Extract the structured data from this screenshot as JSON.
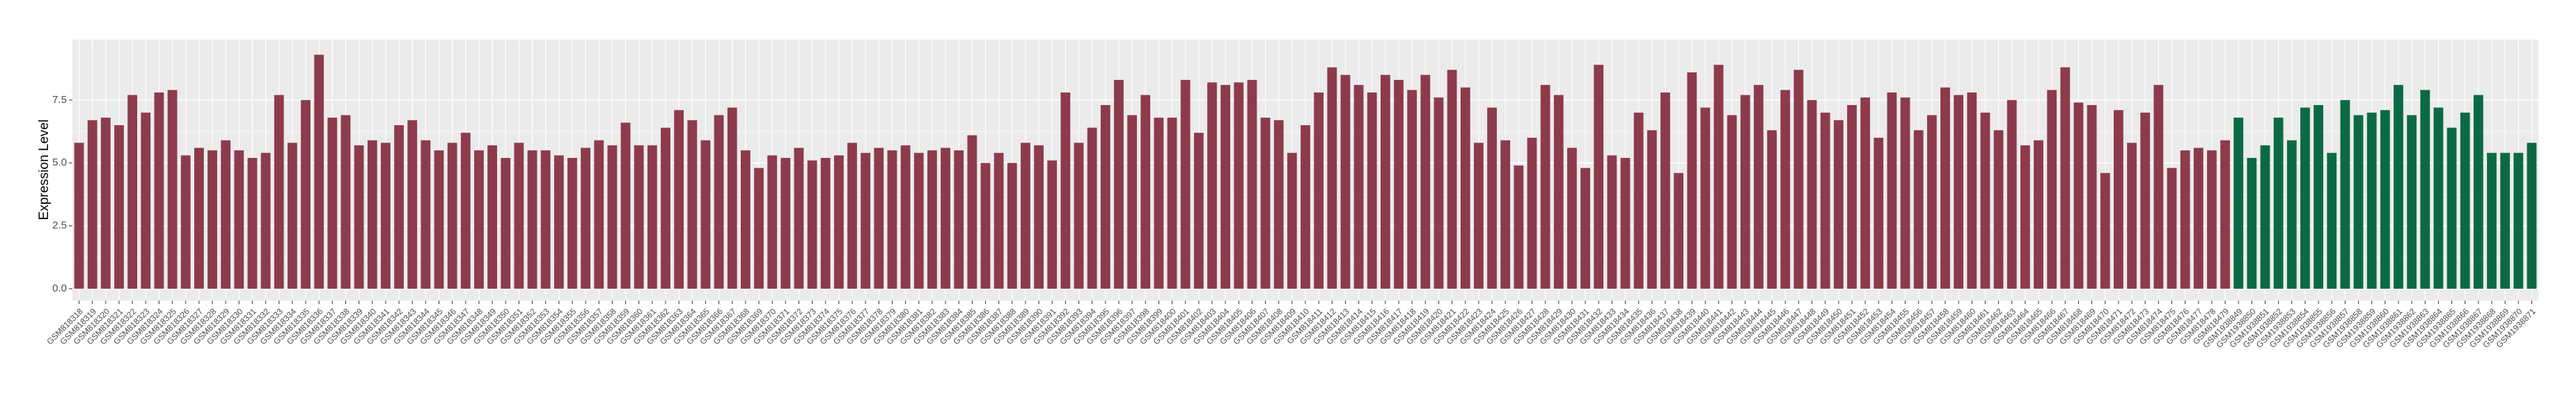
{
  "chart_data": {
    "type": "bar",
    "y_label": "Expression Level",
    "categories": [
      "GSM818318",
      "GSM818319",
      "GSM818320",
      "GSM818321",
      "GSM818322",
      "GSM818323",
      "GSM818324",
      "GSM818325",
      "GSM818326",
      "GSM818327",
      "GSM818328",
      "GSM818329",
      "GSM818330",
      "GSM818331",
      "GSM818332",
      "GSM818333",
      "GSM818334",
      "GSM818335",
      "GSM818336",
      "GSM818337",
      "GSM818338",
      "GSM818339",
      "GSM818340",
      "GSM818341",
      "GSM818342",
      "GSM818343",
      "GSM818344",
      "GSM818345",
      "GSM818346",
      "GSM818347",
      "GSM818348",
      "GSM818349",
      "GSM818350",
      "GSM818351",
      "GSM818352",
      "GSM818353",
      "GSM818354",
      "GSM818355",
      "GSM818356",
      "GSM818357",
      "GSM818358",
      "GSM818359",
      "GSM818360",
      "GSM818361",
      "GSM818362",
      "GSM818363",
      "GSM818364",
      "GSM818365",
      "GSM818366",
      "GSM818367",
      "GSM818368",
      "GSM818369",
      "GSM818370",
      "GSM818371",
      "GSM818372",
      "GSM818373",
      "GSM818374",
      "GSM818375",
      "GSM818376",
      "GSM818377",
      "GSM818378",
      "GSM818379",
      "GSM818380",
      "GSM818381",
      "GSM818382",
      "GSM818383",
      "GSM818384",
      "GSM818385",
      "GSM818386",
      "GSM818387",
      "GSM818388",
      "GSM818389",
      "GSM818390",
      "GSM818391",
      "GSM818392",
      "GSM818393",
      "GSM818394",
      "GSM818395",
      "GSM818396",
      "GSM818397",
      "GSM818398",
      "GSM818399",
      "GSM818400",
      "GSM818401",
      "GSM818402",
      "GSM818403",
      "GSM818404",
      "GSM818405",
      "GSM818406",
      "GSM818407",
      "GSM818408",
      "GSM818409",
      "GSM818410",
      "GSM818411",
      "GSM818412",
      "GSM818413",
      "GSM818414",
      "GSM818415",
      "GSM818416",
      "GSM818417",
      "GSM818418",
      "GSM818419",
      "GSM818420",
      "GSM818421",
      "GSM818422",
      "GSM818423",
      "GSM818424",
      "GSM818425",
      "GSM818426",
      "GSM818427",
      "GSM818428",
      "GSM818429",
      "GSM818430",
      "GSM818431",
      "GSM818432",
      "GSM818433",
      "GSM818434",
      "GSM818435",
      "GSM818436",
      "GSM818437",
      "GSM818438",
      "GSM818439",
      "GSM818440",
      "GSM818441",
      "GSM818442",
      "GSM818443",
      "GSM818444",
      "GSM818445",
      "GSM818446",
      "GSM818447",
      "GSM818448",
      "GSM818449",
      "GSM818450",
      "GSM818451",
      "GSM818452",
      "GSM818453",
      "GSM818454",
      "GSM818455",
      "GSM818456",
      "GSM818457",
      "GSM818458",
      "GSM818459",
      "GSM818460",
      "GSM818461",
      "GSM818462",
      "GSM818463",
      "GSM818464",
      "GSM818465",
      "GSM818466",
      "GSM818467",
      "GSM818468",
      "GSM818469",
      "GSM818470",
      "GSM818471",
      "GSM818472",
      "GSM818473",
      "GSM818474",
      "GSM818475",
      "GSM818476",
      "GSM818477",
      "GSM818478",
      "GSM818479",
      "GSM1938849",
      "GSM1938850",
      "GSM1938851",
      "GSM1938852",
      "GSM1938853",
      "GSM1938854",
      "GSM1938855",
      "GSM1938856",
      "GSM1938857",
      "GSM1938858",
      "GSM1938859",
      "GSM1938860",
      "GSM1938861",
      "GSM1938862",
      "GSM1938863",
      "GSM1938864",
      "GSM1938865",
      "GSM1938866",
      "GSM1938867",
      "GSM1938868",
      "GSM1938869",
      "GSM1938870",
      "GSM1938871"
    ],
    "series": [
      {
        "color": "#8d3b4c",
        "values": [
          5.8,
          6.7,
          6.8,
          6.5,
          7.7,
          7.0,
          7.8,
          7.9,
          5.3,
          5.6,
          5.5,
          5.9,
          5.5,
          5.2,
          5.4,
          7.7,
          5.8,
          7.5,
          9.3,
          6.8,
          6.9,
          5.7,
          5.9,
          5.8,
          6.5,
          6.7,
          5.9,
          5.5,
          5.8,
          6.2,
          5.5,
          5.7,
          5.2,
          5.8,
          5.5,
          5.5,
          5.3,
          5.2,
          5.6,
          5.9,
          5.7,
          6.6,
          5.7,
          5.7,
          6.4,
          7.1,
          6.7,
          5.9,
          6.9,
          7.2,
          5.5,
          4.8,
          5.3,
          5.2,
          5.6,
          5.1,
          5.2,
          5.3,
          5.8,
          5.4,
          5.6,
          5.5,
          5.7,
          5.4,
          5.5,
          5.6,
          5.5,
          6.1,
          5.0,
          5.4,
          5.0,
          5.8,
          5.7,
          5.1,
          7.8,
          5.8,
          6.4,
          7.3,
          8.3,
          6.9,
          7.7,
          6.8,
          6.8,
          8.3,
          6.2,
          8.2,
          8.1,
          8.2,
          8.3,
          6.8,
          6.7,
          5.4,
          6.5,
          7.8,
          8.8,
          8.5,
          8.1,
          7.8,
          8.5,
          8.3,
          7.9,
          8.5,
          7.6,
          8.7,
          8.0,
          5.8,
          7.2,
          5.9,
          4.9,
          6.0,
          8.1,
          7.7,
          5.6,
          4.8,
          8.9,
          5.3,
          5.2,
          7.0,
          6.3,
          7.8,
          4.6,
          8.6,
          7.2,
          8.9,
          6.9,
          7.7,
          8.1,
          6.3,
          7.9,
          8.7,
          7.5,
          7.0,
          6.7,
          7.3,
          7.6,
          6.0,
          7.8,
          7.6,
          6.3,
          6.9,
          8.0,
          7.7,
          7.8,
          7.0,
          6.3,
          7.5,
          5.7,
          5.9,
          7.9,
          8.8,
          7.4,
          7.3,
          4.6,
          7.1,
          5.8,
          7.0,
          8.1,
          4.8,
          5.5,
          5.6,
          5.5,
          5.9,
          null,
          null,
          null,
          null,
          null,
          null,
          null,
          null,
          null,
          null,
          null,
          null,
          null,
          null,
          null,
          null,
          null,
          null,
          null,
          null,
          null,
          null,
          null
        ]
      },
      {
        "color": "#0b6a45",
        "values": [
          null,
          null,
          null,
          null,
          null,
          null,
          null,
          null,
          null,
          null,
          null,
          null,
          null,
          null,
          null,
          null,
          null,
          null,
          null,
          null,
          null,
          null,
          null,
          null,
          null,
          null,
          null,
          null,
          null,
          null,
          null,
          null,
          null,
          null,
          null,
          null,
          null,
          null,
          null,
          null,
          null,
          null,
          null,
          null,
          null,
          null,
          null,
          null,
          null,
          null,
          null,
          null,
          null,
          null,
          null,
          null,
          null,
          null,
          null,
          null,
          null,
          null,
          null,
          null,
          null,
          null,
          null,
          null,
          null,
          null,
          null,
          null,
          null,
          null,
          null,
          null,
          null,
          null,
          null,
          null,
          null,
          null,
          null,
          null,
          null,
          null,
          null,
          null,
          null,
          null,
          null,
          null,
          null,
          null,
          null,
          null,
          null,
          null,
          null,
          null,
          null,
          null,
          null,
          null,
          null,
          null,
          null,
          null,
          null,
          null,
          null,
          null,
          null,
          null,
          null,
          null,
          null,
          null,
          null,
          null,
          null,
          null,
          null,
          null,
          null,
          null,
          null,
          null,
          null,
          null,
          null,
          null,
          null,
          null,
          null,
          null,
          null,
          null,
          null,
          null,
          null,
          null,
          null,
          null,
          null,
          null,
          null,
          null,
          null,
          null,
          null,
          null,
          null,
          null,
          null,
          null,
          null,
          null,
          null,
          null,
          null,
          null,
          6.8,
          5.2,
          5.7,
          6.8,
          5.9,
          7.2,
          7.3,
          5.4,
          7.5,
          6.9,
          7.0,
          7.1,
          8.1,
          6.9,
          7.9,
          7.2,
          6.4,
          7.0,
          7.7,
          5.4,
          5.4,
          5.4,
          5.8
        ]
      }
    ],
    "ylim": [
      -0.47,
      9.9
    ],
    "yticks": [
      {
        "value": 0,
        "label": "0.0"
      },
      {
        "value": 2.5,
        "label": "2.5"
      },
      {
        "value": 5,
        "label": "5.0"
      },
      {
        "value": 7.5,
        "label": "7.5"
      }
    ],
    "grid": true
  }
}
